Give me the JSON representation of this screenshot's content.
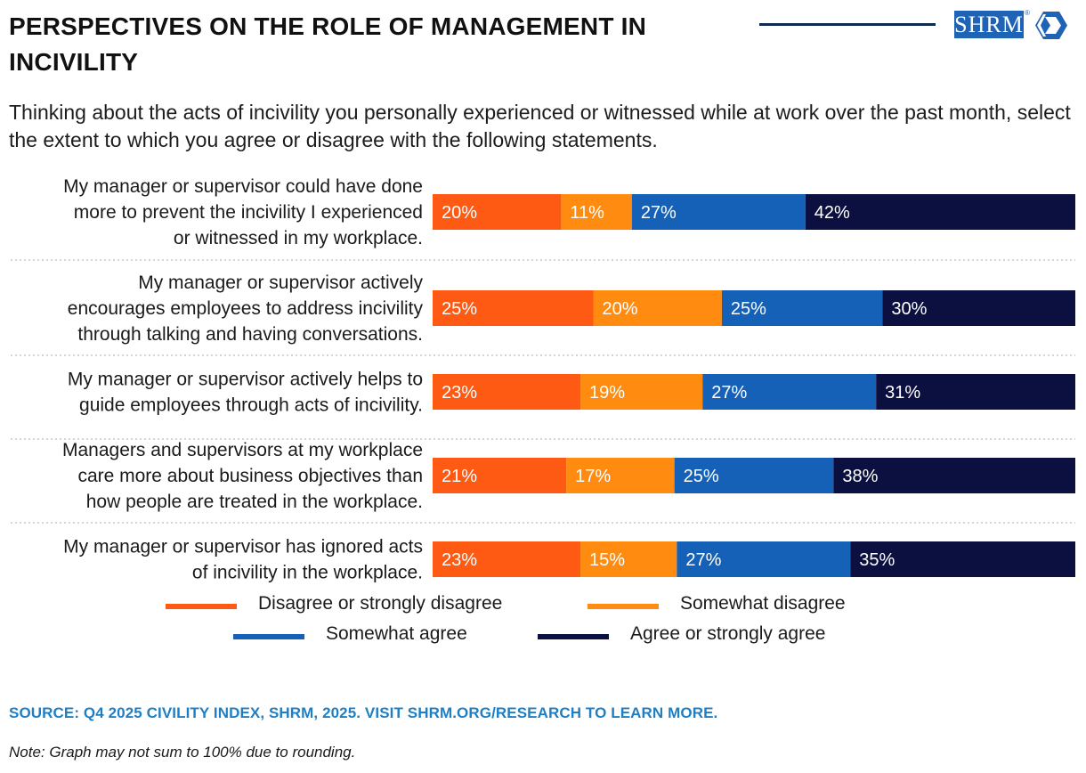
{
  "header": {
    "title": "PERSPECTIVES ON THE ROLE OF MANAGEMENT IN INCIVILITY",
    "logo_text": "SHRM",
    "logo_reg": "®"
  },
  "subtitle": "Thinking about the acts of incivility you personally experienced or witnessed while at work over the past month, select the extent to which you agree or disagree with the following statements.",
  "colors": {
    "disagree_strong": "#ff5a14",
    "disagree_somewhat": "#ff8c10",
    "agree_somewhat": "#1661b8",
    "agree_strong": "#0c1040"
  },
  "chart_data": {
    "type": "bar",
    "orientation": "horizontal",
    "stacked": true,
    "categories": [
      [
        "My manager or supervisor could have done",
        "more to prevent the incivility I experienced",
        "or witnessed in my workplace."
      ],
      [
        "My manager or supervisor actively",
        "encourages employees to address incivility",
        "through talking and having conversations."
      ],
      [
        "My manager or supervisor actively helps to",
        "guide employees through acts of incivility."
      ],
      [
        "Managers and supervisors at my workplace",
        "care more about business objectives than",
        "how people are treated in the workplace."
      ],
      [
        "My manager or supervisor has ignored acts",
        "of incivility in the workplace."
      ]
    ],
    "series": [
      {
        "name": "Disagree or strongly disagree",
        "values": [
          20,
          25,
          23,
          21,
          23
        ],
        "color": "#ff5a14"
      },
      {
        "name": "Somewhat disagree",
        "values": [
          11,
          20,
          19,
          17,
          15
        ],
        "color": "#ff8c10"
      },
      {
        "name": "Somewhat agree",
        "values": [
          27,
          25,
          27,
          25,
          27
        ],
        "color": "#1661b8"
      },
      {
        "name": "Agree or strongly agree",
        "values": [
          42,
          30,
          31,
          38,
          35
        ],
        "color": "#0c1040"
      }
    ],
    "value_suffix": "%",
    "legend_position": "bottom"
  },
  "footer": {
    "source": "SOURCE: Q4 2025 CIVILITY INDEX, SHRM, 2025. VISIT SHRM.ORG/RESEARCH TO LEARN MORE.",
    "note": "Note: Graph may not sum to 100% due to rounding."
  }
}
